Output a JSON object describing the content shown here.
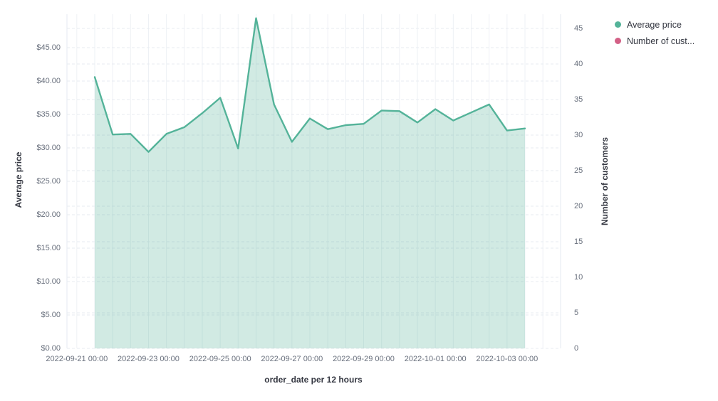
{
  "chart_data": {
    "type": "area",
    "title": "",
    "x": [
      "2022-09-21 12:00",
      "2022-09-22 00:00",
      "2022-09-22 12:00",
      "2022-09-23 00:00",
      "2022-09-23 12:00",
      "2022-09-24 00:00",
      "2022-09-24 12:00",
      "2022-09-25 00:00",
      "2022-09-25 12:00",
      "2022-09-26 00:00",
      "2022-09-26 12:00",
      "2022-09-27 00:00",
      "2022-09-27 12:00",
      "2022-09-28 00:00",
      "2022-09-28 12:00",
      "2022-09-29 00:00",
      "2022-09-29 12:00",
      "2022-09-30 00:00",
      "2022-09-30 12:00",
      "2022-10-01 00:00",
      "2022-10-01 12:00",
      "2022-10-02 00:00",
      "2022-10-02 12:00",
      "2022-10-03 00:00",
      "2022-10-03 12:00"
    ],
    "series": [
      {
        "name": "Average price",
        "axis": "left",
        "color": "#54B399",
        "fill_opacity": 0.27,
        "values": [
          40.6,
          32.0,
          32.1,
          29.4,
          32.1,
          33.1,
          35.2,
          37.5,
          29.9,
          49.4,
          36.5,
          30.9,
          34.4,
          32.8,
          33.4,
          33.6,
          35.6,
          35.5,
          33.8,
          35.8,
          34.1,
          35.3,
          36.5,
          32.6,
          32.9
        ]
      },
      {
        "name": "Number of customers",
        "axis": "right",
        "color": "#D36086",
        "values": []
      }
    ],
    "x_axis": {
      "title": "order_date per 12 hours",
      "tick_labels": [
        "2022-09-21 00:00",
        "2022-09-23 00:00",
        "2022-09-25 00:00",
        "2022-09-27 00:00",
        "2022-09-29 00:00",
        "2022-10-01 00:00",
        "2022-10-03 00:00"
      ]
    },
    "left_axis": {
      "title": "Average price",
      "tick_values": [
        0,
        5,
        10,
        15,
        20,
        25,
        30,
        35,
        40,
        45
      ],
      "tick_labels": [
        "$0.00",
        "$5.00",
        "$10.00",
        "$15.00",
        "$20.00",
        "$25.00",
        "$30.00",
        "$35.00",
        "$40.00",
        "$45.00"
      ],
      "range": [
        0,
        50
      ]
    },
    "right_axis": {
      "title": "Number of customers",
      "tick_values": [
        0,
        5,
        10,
        15,
        20,
        25,
        30,
        35,
        40,
        45
      ],
      "tick_labels": [
        "0",
        "5",
        "10",
        "15",
        "20",
        "25",
        "30",
        "35",
        "40",
        "45"
      ],
      "range": [
        0,
        47
      ]
    },
    "grid": true,
    "legend_position": "right"
  },
  "legend": {
    "items": [
      {
        "label": "Average price",
        "color": "#54B399"
      },
      {
        "label": "Number of cust...",
        "color": "#D36086"
      }
    ]
  },
  "colors": {
    "line": "#54B399",
    "area_fill": "rgba(84,179,153,0.27)",
    "grid_vertical": "#eef1f5",
    "grid_dashed": "#e7ebf1",
    "axis_border": "#e4e9f0",
    "tick_text": "#69707d",
    "title_text": "#343741"
  }
}
